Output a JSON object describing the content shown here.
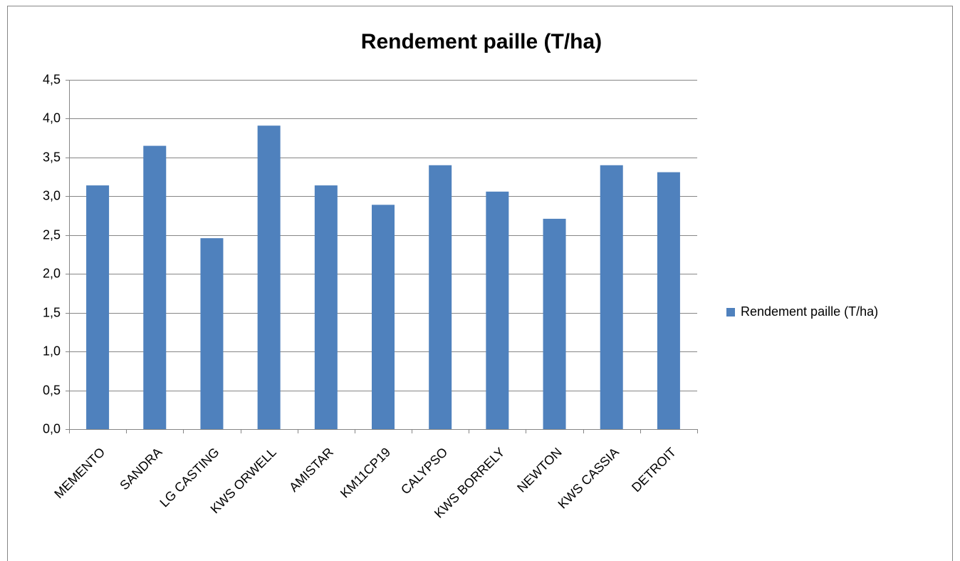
{
  "chart_data": {
    "type": "bar",
    "title": "Rendement paille (T/ha)",
    "categories": [
      "MEMENTO",
      "SANDRA",
      "LG CASTING",
      "KWS ORWELL",
      "AMISTAR",
      "KM11CP19",
      "CALYPSO",
      "KWS BORRELY",
      "NEWTON",
      "KWS CASSIA",
      "DETROIT"
    ],
    "series": [
      {
        "name": "Rendement paille (T/ha)",
        "color": "#4f81bd",
        "values": [
          3.14,
          3.65,
          2.46,
          3.91,
          3.14,
          2.89,
          3.4,
          3.06,
          2.71,
          3.4,
          3.31
        ]
      }
    ],
    "ylim": [
      0,
      4.5
    ],
    "yticks": [
      {
        "value": 0,
        "label": "0,0"
      },
      {
        "value": 0.5,
        "label": "0,5"
      },
      {
        "value": 1,
        "label": "1,0"
      },
      {
        "value": 1.5,
        "label": "1,5"
      },
      {
        "value": 2,
        "label": "2,0"
      },
      {
        "value": 2.5,
        "label": "2,5"
      },
      {
        "value": 3,
        "label": "3,0"
      },
      {
        "value": 3.5,
        "label": "3,5"
      },
      {
        "value": 4,
        "label": "4,0"
      },
      {
        "value": 4.5,
        "label": "4,5"
      }
    ],
    "grid": true,
    "legend": "right"
  }
}
